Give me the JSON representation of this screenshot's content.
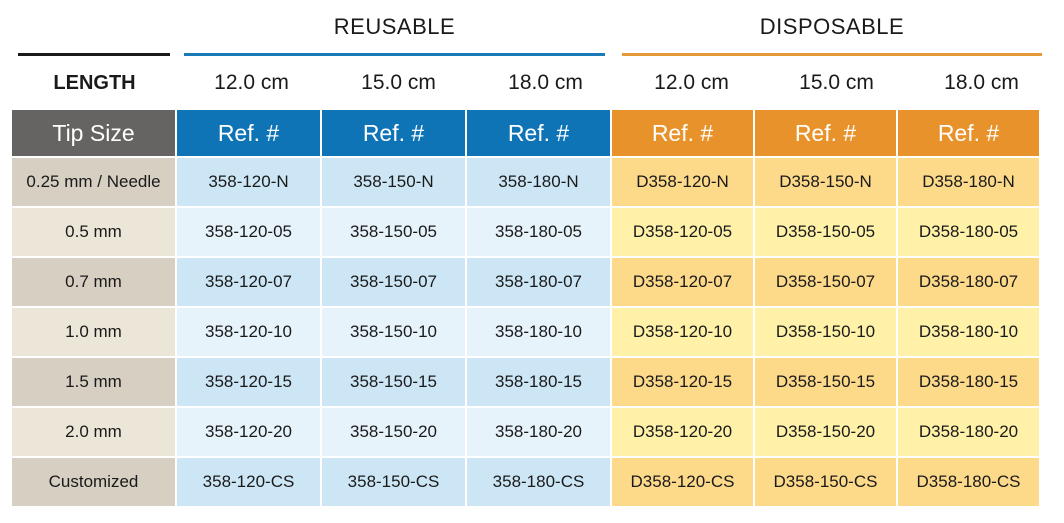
{
  "groups": {
    "reusable": "REUSABLE",
    "disposable": "DISPOSABLE"
  },
  "length": {
    "label": "LENGTH",
    "values": [
      "12.0 cm",
      "15.0 cm",
      "18.0 cm",
      "12.0 cm",
      "15.0 cm",
      "18.0 cm"
    ]
  },
  "header": {
    "tip_size": "Tip Size",
    "ref": "Ref. #"
  },
  "rows": [
    {
      "tip": "0.25 mm / Needle",
      "refs": [
        "358-120-N",
        "358-150-N",
        "358-180-N",
        "D358-120-N",
        "D358-150-N",
        "D358-180-N"
      ]
    },
    {
      "tip": "0.5 mm",
      "refs": [
        "358-120-05",
        "358-150-05",
        "358-180-05",
        "D358-120-05",
        "D358-150-05",
        "D358-180-05"
      ]
    },
    {
      "tip": "0.7 mm",
      "refs": [
        "358-120-07",
        "358-150-07",
        "358-180-07",
        "D358-120-07",
        "D358-150-07",
        "D358-180-07"
      ]
    },
    {
      "tip": "1.0 mm",
      "refs": [
        "358-120-10",
        "358-150-10",
        "358-180-10",
        "D358-120-10",
        "D358-150-10",
        "D358-180-10"
      ]
    },
    {
      "tip": "1.5 mm",
      "refs": [
        "358-120-15",
        "358-150-15",
        "358-180-15",
        "D358-120-15",
        "D358-150-15",
        "D358-180-15"
      ]
    },
    {
      "tip": "2.0 mm",
      "refs": [
        "358-120-20",
        "358-150-20",
        "358-180-20",
        "D358-120-20",
        "D358-150-20",
        "D358-180-20"
      ]
    },
    {
      "tip": "Customized",
      "refs": [
        "358-120-CS",
        "358-150-CS",
        "358-180-CS",
        "D358-120-CS",
        "D358-150-CS",
        "D358-180-CS"
      ]
    }
  ],
  "colors": {
    "reusable_accent": "#0f74b6",
    "disposable_accent": "#e8922c",
    "tip_header": "#666462"
  }
}
